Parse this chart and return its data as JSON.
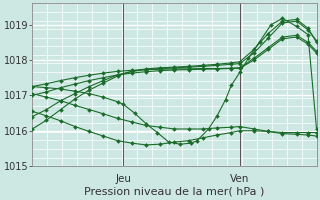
{
  "bg_color": "#cde8e2",
  "grid_color": "#ffffff",
  "line_color": "#1a6b2a",
  "xlabel": "Pression niveau de la mer( hPa )",
  "xlabel_fontsize": 8,
  "tick_fontsize": 7,
  "ylim": [
    1015.0,
    1019.6
  ],
  "yticks": [
    1015,
    1016,
    1017,
    1018,
    1019
  ],
  "day_labels": [
    "Jeu",
    "Ven"
  ],
  "day_positions": [
    0.32,
    0.73
  ],
  "series": [
    {
      "x": [
        0.0,
        0.05,
        0.1,
        0.15,
        0.2,
        0.25,
        0.3,
        0.35,
        0.4,
        0.45,
        0.5,
        0.55,
        0.6,
        0.65,
        0.7,
        0.73,
        0.78,
        0.83,
        0.88,
        0.93,
        0.97,
        1.0
      ],
      "y": [
        1016.05,
        1016.3,
        1016.6,
        1016.9,
        1017.15,
        1017.35,
        1017.55,
        1017.68,
        1017.75,
        1017.78,
        1017.8,
        1017.82,
        1017.85,
        1017.88,
        1017.92,
        1017.95,
        1018.3,
        1018.75,
        1019.1,
        1019.15,
        1018.9,
        1018.5
      ]
    },
    {
      "x": [
        0.0,
        0.05,
        0.1,
        0.15,
        0.2,
        0.25,
        0.3,
        0.35,
        0.4,
        0.45,
        0.5,
        0.55,
        0.6,
        0.65,
        0.7,
        0.73,
        0.78,
        0.83,
        0.88,
        0.93,
        0.97,
        1.0
      ],
      "y": [
        1016.4,
        1016.6,
        1016.85,
        1017.05,
        1017.25,
        1017.42,
        1017.58,
        1017.68,
        1017.73,
        1017.76,
        1017.78,
        1017.8,
        1017.82,
        1017.85,
        1017.88,
        1017.9,
        1018.2,
        1018.62,
        1019.05,
        1019.1,
        1018.85,
        1018.55
      ]
    },
    {
      "x": [
        0.0,
        0.05,
        0.1,
        0.15,
        0.2,
        0.25,
        0.3,
        0.35,
        0.4,
        0.45,
        0.5,
        0.55,
        0.6,
        0.65,
        0.7,
        0.73,
        0.78,
        0.83,
        0.88,
        0.93,
        0.97,
        1.0
      ],
      "y": [
        1017.0,
        1017.1,
        1017.22,
        1017.32,
        1017.42,
        1017.5,
        1017.58,
        1017.63,
        1017.67,
        1017.7,
        1017.72,
        1017.73,
        1017.74,
        1017.75,
        1017.76,
        1017.77,
        1018.0,
        1018.3,
        1018.6,
        1018.65,
        1018.45,
        1018.2
      ]
    },
    {
      "x": [
        0.0,
        0.05,
        0.1,
        0.15,
        0.2,
        0.25,
        0.3,
        0.35,
        0.4,
        0.45,
        0.5,
        0.55,
        0.6,
        0.65,
        0.7,
        0.73,
        0.78,
        0.83,
        0.88,
        0.93,
        0.97,
        1.0
      ],
      "y": [
        1017.25,
        1017.33,
        1017.42,
        1017.5,
        1017.57,
        1017.63,
        1017.68,
        1017.71,
        1017.73,
        1017.74,
        1017.75,
        1017.75,
        1017.76,
        1017.76,
        1017.77,
        1017.78,
        1018.05,
        1018.35,
        1018.65,
        1018.7,
        1018.5,
        1018.25
      ]
    },
    {
      "x": [
        0.0,
        0.05,
        0.1,
        0.15,
        0.2,
        0.25,
        0.3,
        0.35,
        0.4,
        0.45,
        0.5,
        0.55,
        0.6,
        0.65,
        0.7,
        0.73,
        0.78,
        0.83,
        0.88,
        0.93,
        0.97,
        1.0
      ],
      "y": [
        1017.05,
        1016.95,
        1016.85,
        1016.72,
        1016.6,
        1016.48,
        1016.35,
        1016.25,
        1016.15,
        1016.1,
        1016.05,
        1016.05,
        1016.05,
        1016.08,
        1016.1,
        1016.12,
        1016.05,
        1015.98,
        1015.92,
        1015.9,
        1015.88,
        1015.85
      ]
    },
    {
      "x": [
        0.0,
        0.05,
        0.1,
        0.15,
        0.2,
        0.25,
        0.3,
        0.35,
        0.4,
        0.45,
        0.5,
        0.55,
        0.6,
        0.65,
        0.7,
        0.73,
        0.78,
        0.83,
        0.88,
        0.93,
        0.97,
        1.0
      ],
      "y": [
        1016.55,
        1016.42,
        1016.28,
        1016.12,
        1015.98,
        1015.85,
        1015.72,
        1015.65,
        1015.6,
        1015.62,
        1015.68,
        1015.72,
        1015.8,
        1015.88,
        1015.95,
        1016.0,
        1016.0,
        1015.98,
        1015.95,
        1015.95,
        1015.95,
        1015.95
      ]
    },
    {
      "x": [
        0.0,
        0.05,
        0.1,
        0.15,
        0.2,
        0.25,
        0.3,
        0.32,
        0.36,
        0.4,
        0.44,
        0.48,
        0.52,
        0.56,
        0.58,
        0.62,
        0.65,
        0.68,
        0.7,
        0.73,
        0.76,
        0.8,
        0.84,
        0.88,
        0.93,
        0.97,
        1.0
      ],
      "y": [
        1017.25,
        1017.22,
        1017.18,
        1017.12,
        1017.05,
        1016.95,
        1016.82,
        1016.75,
        1016.5,
        1016.2,
        1015.95,
        1015.68,
        1015.62,
        1015.65,
        1015.72,
        1016.05,
        1016.42,
        1016.88,
        1017.28,
        1017.65,
        1018.05,
        1018.52,
        1019.0,
        1019.18,
        1018.95,
        1018.72,
        1016.05
      ]
    }
  ]
}
